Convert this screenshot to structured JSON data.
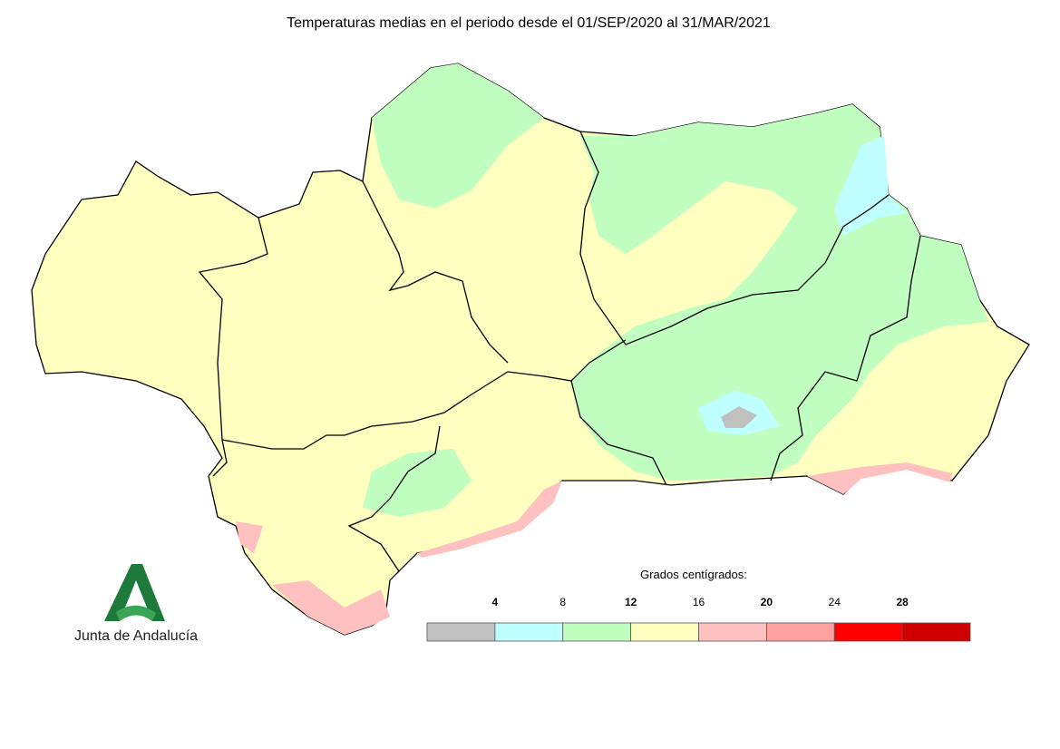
{
  "title": "Temperaturas medias en el periodo desde el 01/SEP/2020 al 31/MAR/2021",
  "legend": {
    "title": "Grados centígrados:",
    "ticks": [
      4,
      8,
      12,
      16,
      20,
      24,
      28
    ],
    "colors": [
      "#c0c0c0",
      "#c0ffff",
      "#c0ffc0",
      "#ffffc0",
      "#ffc0c0",
      "#ffa0a0",
      "#ff0000",
      "#d00000"
    ]
  },
  "logo": {
    "text": "Junta de Andalucía"
  }
}
